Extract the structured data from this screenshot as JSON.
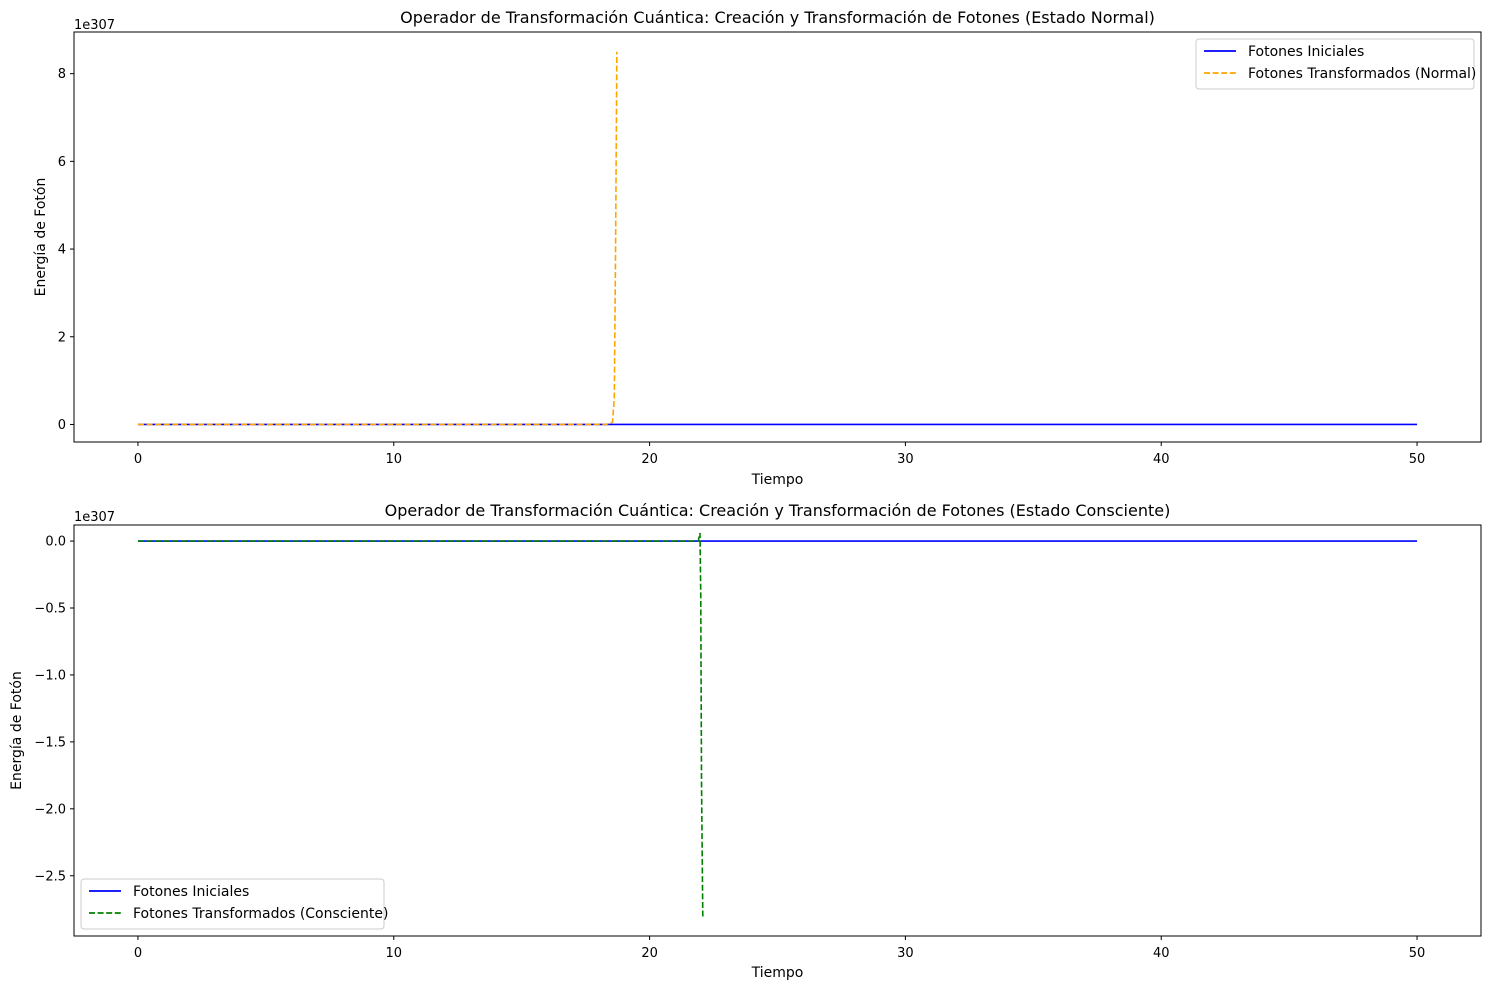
{
  "chart_data": [
    {
      "type": "line",
      "title": "Operador de Transformación Cuántica: Creación y Transformación de Fotones (Estado Normal)",
      "xlabel": "Tiempo",
      "ylabel": "Energía de Fotón",
      "offset_text": "1e307",
      "xlim": [
        -2.5,
        52.5
      ],
      "ylim": [
        -0.4,
        8.95
      ],
      "y_scale_factor": "1e307",
      "xticks": [
        0,
        10,
        20,
        30,
        40,
        50
      ],
      "xtick_labels": [
        "0",
        "10",
        "20",
        "30",
        "40",
        "50"
      ],
      "yticks": [
        0,
        2,
        4,
        6,
        8
      ],
      "ytick_labels": [
        "0",
        "2",
        "4",
        "6",
        "8"
      ],
      "grid": false,
      "legend_position": "upper right",
      "series": [
        {
          "name": "Fotones Iniciales",
          "color": "#0000ff",
          "style": "solid",
          "x": [
            0,
            50
          ],
          "y": [
            0,
            0
          ]
        },
        {
          "name": "Fotones Transformados (Normal)",
          "color": "#ffa500",
          "style": "dashed",
          "x": [
            0,
            18.3,
            18.55,
            18.62,
            18.67,
            18.72
          ],
          "y": [
            0,
            0,
            0.05,
            0.6,
            4.0,
            8.5
          ]
        }
      ]
    },
    {
      "type": "line",
      "title": "Operador de Transformación Cuántica: Creación y Transformación de Fotones (Estado Consciente)",
      "xlabel": "Tiempo",
      "ylabel": "Energía de Fotón",
      "offset_text": "1e307",
      "xlim": [
        -2.5,
        52.5
      ],
      "ylim": [
        -2.95,
        0.12
      ],
      "y_scale_factor": "1e307",
      "xticks": [
        0,
        10,
        20,
        30,
        40,
        50
      ],
      "xtick_labels": [
        "0",
        "10",
        "20",
        "30",
        "40",
        "50"
      ],
      "yticks": [
        0.0,
        -0.5,
        -1.0,
        -1.5,
        -2.0,
        -2.5
      ],
      "ytick_labels": [
        "0.0",
        "−0.5",
        "−1.0",
        "−1.5",
        "−2.0",
        "−2.5"
      ],
      "grid": false,
      "legend_position": "lower left",
      "series": [
        {
          "name": "Fotones Iniciales",
          "color": "#0000ff",
          "style": "solid",
          "x": [
            0,
            50
          ],
          "y": [
            0,
            0
          ]
        },
        {
          "name": "Fotones Transformados (Consciente)",
          "color": "#008000",
          "style": "dashed",
          "x": [
            0,
            21.9,
            21.97,
            22.0,
            22.03,
            22.08
          ],
          "y": [
            0,
            0,
            0.06,
            -0.4,
            -1.8,
            -2.82
          ]
        }
      ]
    }
  ]
}
